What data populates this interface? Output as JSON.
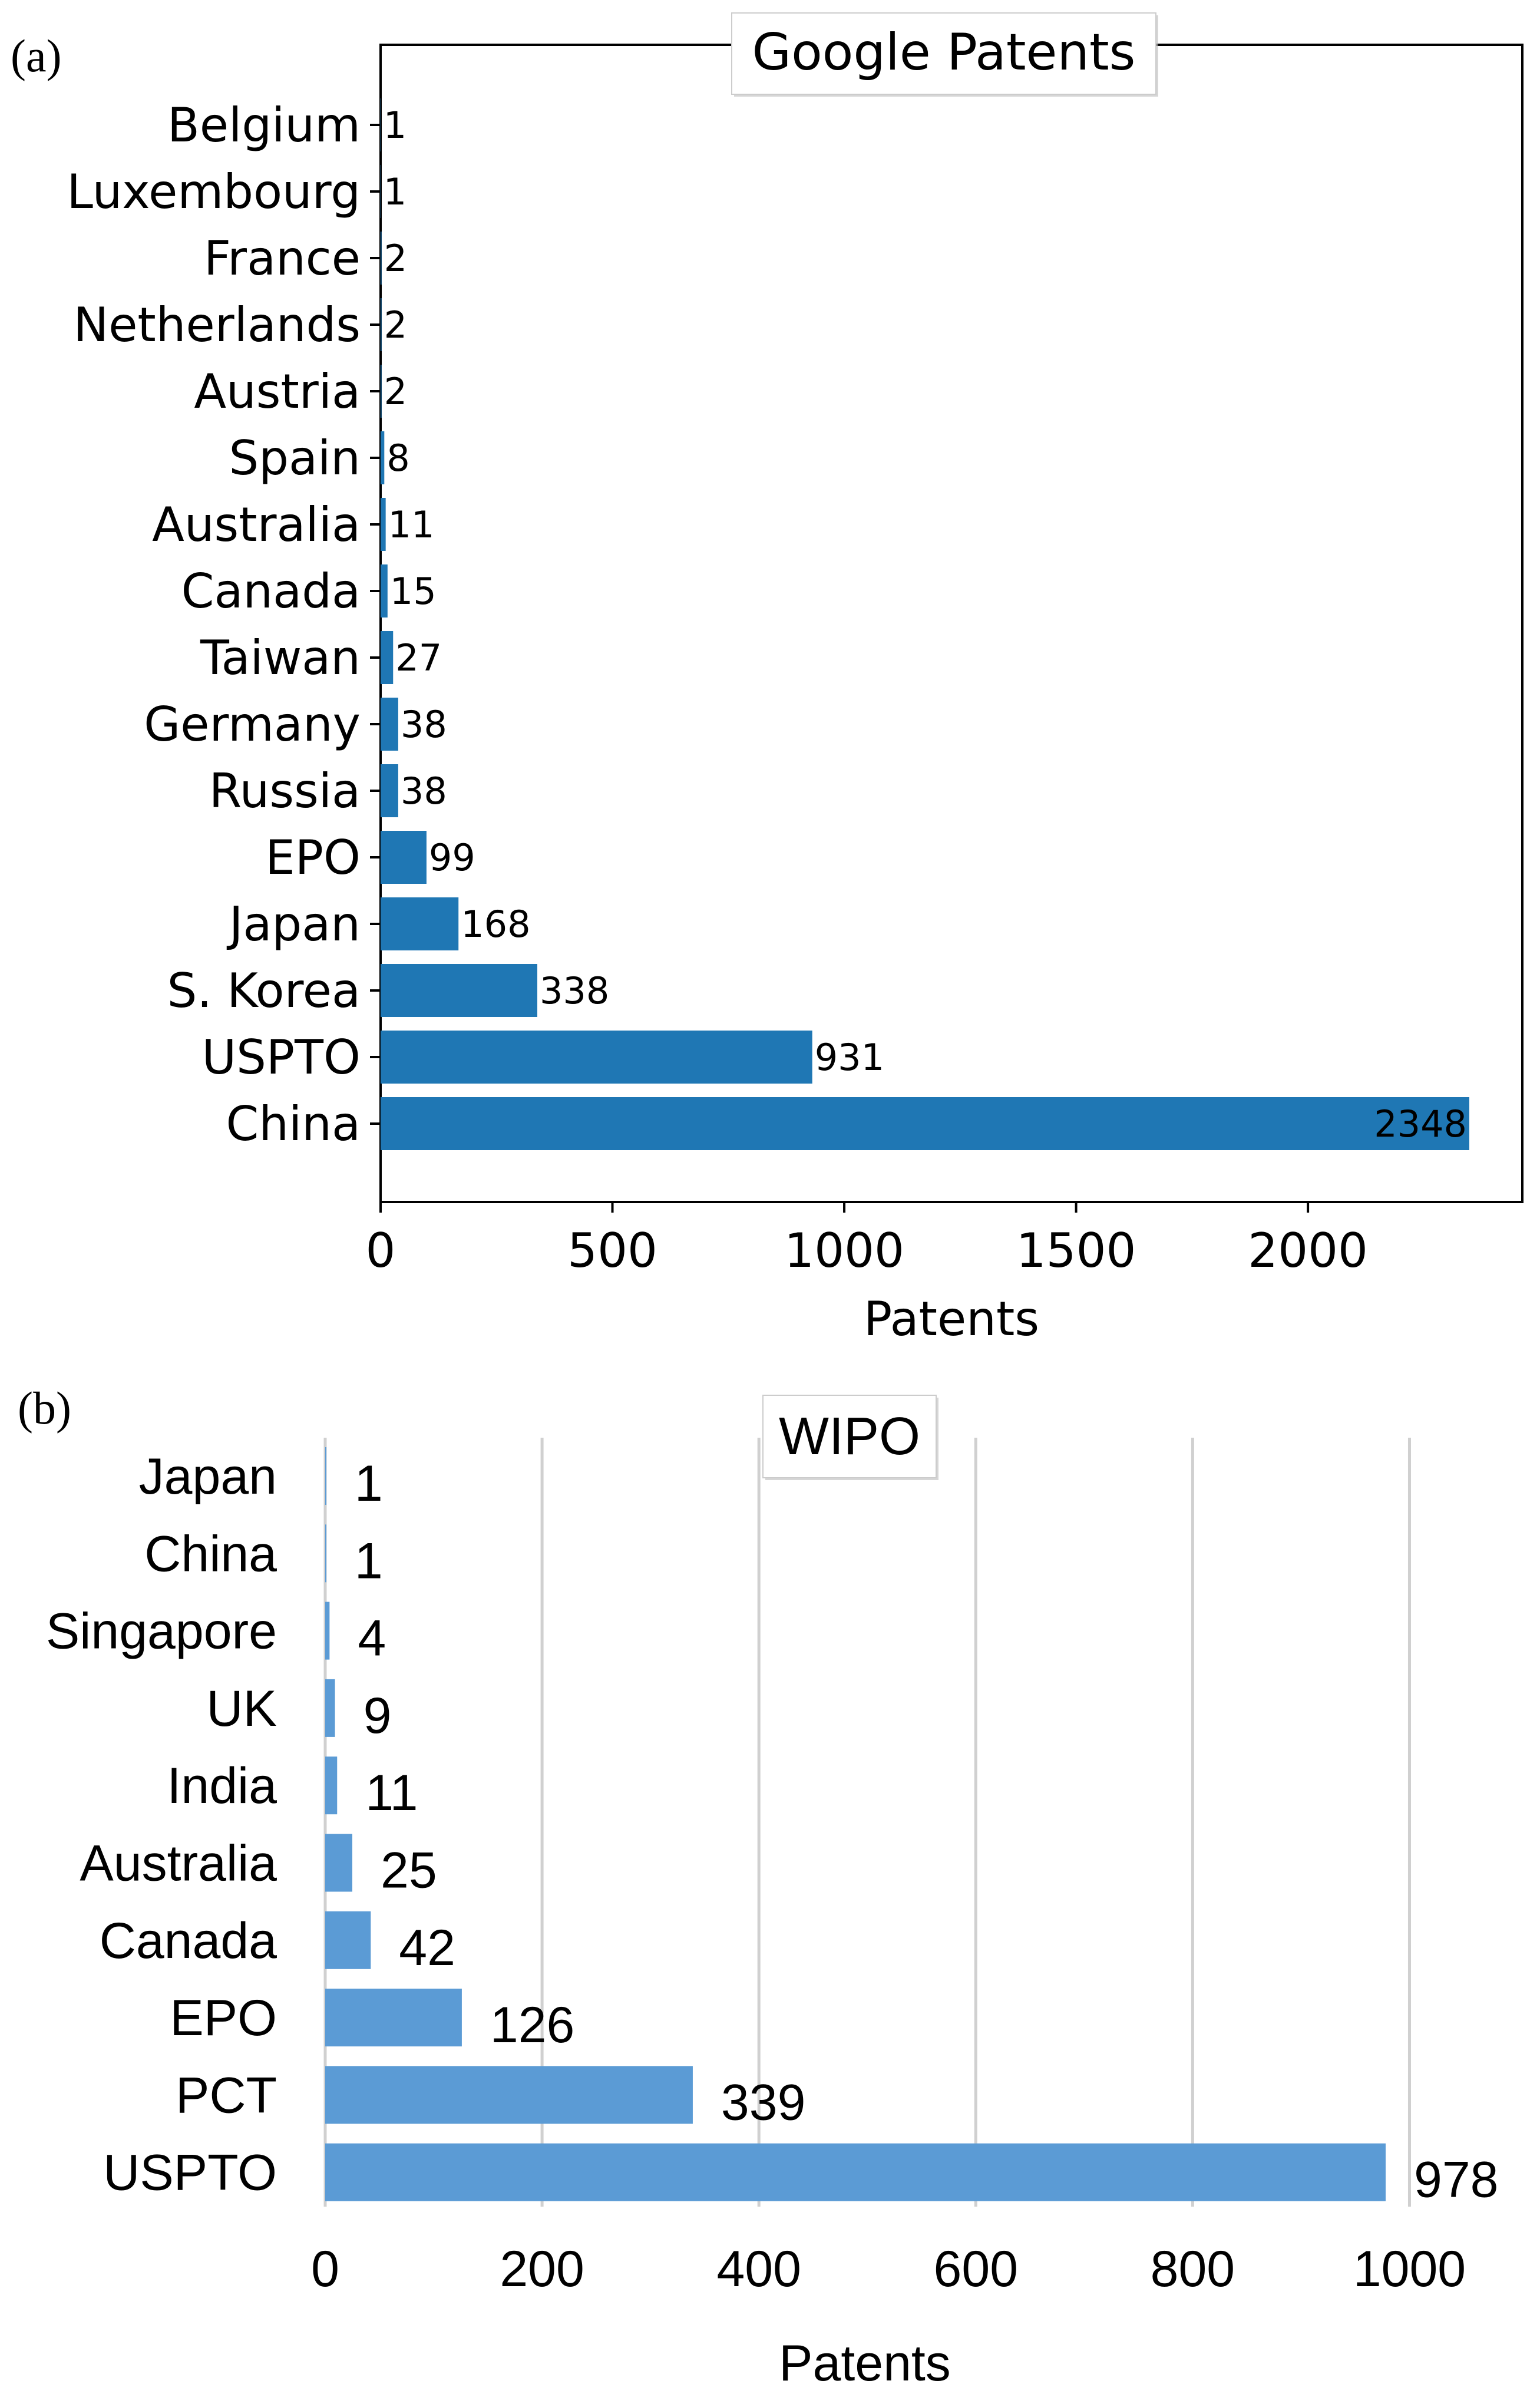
{
  "panel_labels": [
    "(a)",
    "(b)"
  ],
  "chart_data": [
    {
      "type": "bar",
      "orientation": "horizontal",
      "title": "Google Patents",
      "xlabel": "Patents",
      "ylabel": "",
      "xlim": [
        0,
        2500
      ],
      "xticks": [
        "0",
        "500",
        "1000",
        "1500",
        "2000"
      ],
      "grid": false,
      "color": "#1f77b4",
      "categories": [
        "Belgium",
        "Luxembourg",
        "France",
        "Netherlands",
        "Austria",
        "Spain",
        "Australia",
        "Canada",
        "Taiwan",
        "Germany",
        "Russia",
        "EPO",
        "Japan",
        "S. Korea",
        "USPTO",
        "China"
      ],
      "values": [
        1,
        1,
        2,
        2,
        2,
        8,
        11,
        15,
        27,
        38,
        38,
        99,
        168,
        338,
        931,
        2348
      ]
    },
    {
      "type": "bar",
      "orientation": "horizontal",
      "title": "WIPO",
      "xlabel": "Patents",
      "ylabel": "",
      "xlim": [
        0,
        1050
      ],
      "xticks": [
        "0",
        "200",
        "400",
        "600",
        "800",
        "1000"
      ],
      "grid": true,
      "color": "#5b9bd5",
      "categories": [
        "Japan",
        "China",
        "Singapore",
        "UK",
        "India",
        "Australia",
        "Canada",
        "EPO",
        "PCT",
        "USPTO"
      ],
      "values": [
        1,
        1,
        4,
        9,
        11,
        25,
        42,
        126,
        339,
        978
      ]
    }
  ]
}
